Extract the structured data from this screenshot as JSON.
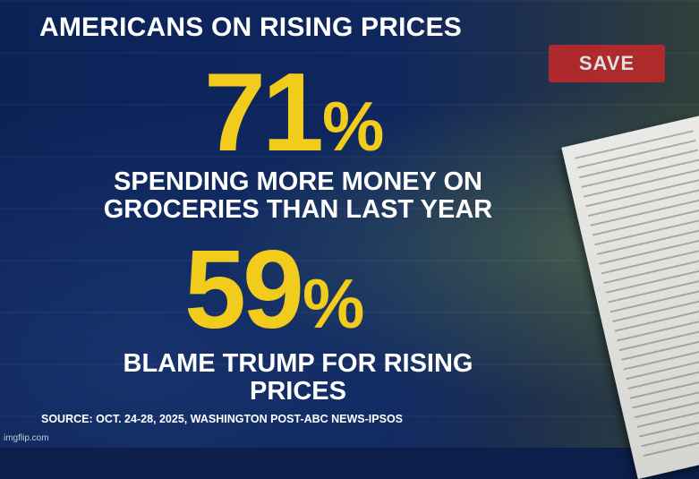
{
  "headline": "AMERICANS ON RISING PRICES",
  "stats": [
    {
      "value": "71",
      "percent_sign": "%",
      "caption_line1": "SPENDING MORE MONEY ON",
      "caption_line2": "GROCERIES THAN LAST YEAR"
    },
    {
      "value": "59",
      "percent_sign": "%",
      "caption_line1": "BLAME TRUMP FOR RISING",
      "caption_line2": "PRICES"
    }
  ],
  "background_sign": "SAVE",
  "source": "SOURCE: OCT. 24-28, 2025, WASHINGTON POST-ABC NEWS-IPSOS",
  "watermark": "imgflip.com",
  "colors": {
    "background": "#0c2357",
    "accent": "#f2cc1d",
    "text": "#ffffff",
    "sign": "#c62828"
  }
}
